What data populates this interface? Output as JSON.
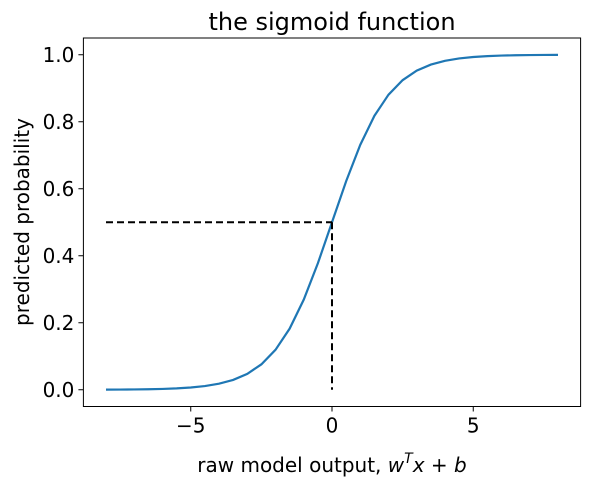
{
  "chart_data": {
    "type": "line",
    "title": "the sigmoid function",
    "xlabel": [
      "raw model output, ",
      "w",
      "T",
      "x",
      " + ",
      "b"
    ],
    "ylabel": "predicted probability",
    "xlim": [
      -8.8,
      8.8
    ],
    "ylim": [
      -0.05,
      1.05
    ],
    "xticks": [
      {
        "value": -5,
        "label": "−5"
      },
      0,
      5
    ],
    "yticks": [
      {
        "value": 0,
        "label": "0.0"
      },
      {
        "value": 0.2,
        "label": "0.2"
      },
      {
        "value": 0.4,
        "label": "0.4"
      },
      {
        "value": 0.6,
        "label": "0.6"
      },
      {
        "value": 0.8,
        "label": "0.8"
      },
      {
        "value": 1,
        "label": "1.0"
      }
    ],
    "grid": false,
    "series": [
      {
        "color": "#1f77b4",
        "dashed": false,
        "x": [
          -8,
          -7.5,
          -7,
          -6.5,
          -6,
          -5.5,
          -5,
          -4.5,
          -4,
          -3.5,
          -3,
          -2.5,
          -2,
          -1.5,
          -1,
          -0.5,
          0,
          0.5,
          1,
          1.5,
          2,
          2.5,
          3,
          3.5,
          4,
          4.5,
          5,
          5.5,
          6,
          6.5,
          7,
          7.5,
          8
        ],
        "values": [
          0.000335,
          0.000553,
          0.000911,
          0.001501,
          0.002473,
          0.00407,
          0.006693,
          0.010987,
          0.017986,
          0.029312,
          0.047426,
          0.075858,
          0.119203,
          0.182426,
          0.268941,
          0.377541,
          0.5,
          0.622459,
          0.731059,
          0.817574,
          0.880797,
          0.924142,
          0.952574,
          0.970688,
          0.982014,
          0.989013,
          0.993307,
          0.99593,
          0.997527,
          0.998499,
          0.999089,
          0.999447,
          0.999665
        ]
      },
      {
        "color": "#000000",
        "dashed": true,
        "x": [
          -8,
          0
        ],
        "values": [
          0.5,
          0.5
        ]
      },
      {
        "color": "#000000",
        "dashed": true,
        "x": [
          0,
          0
        ],
        "values": [
          0.5,
          0
        ]
      }
    ]
  }
}
